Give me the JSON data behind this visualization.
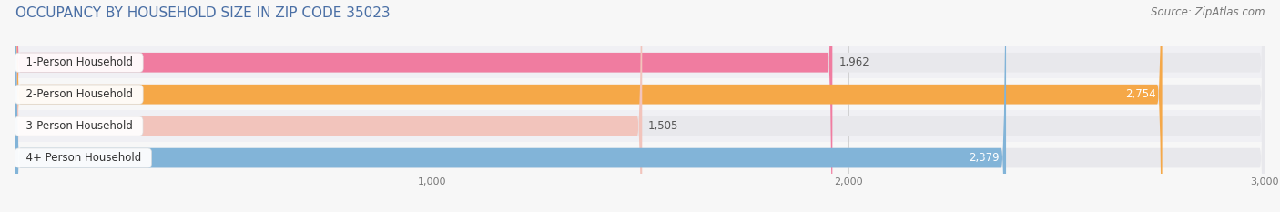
{
  "title": "OCCUPANCY BY HOUSEHOLD SIZE IN ZIP CODE 35023",
  "source": "Source: ZipAtlas.com",
  "categories": [
    "1-Person Household",
    "2-Person Household",
    "3-Person Household",
    "4+ Person Household"
  ],
  "values": [
    1962,
    2754,
    1505,
    2379
  ],
  "bar_colors": [
    "#f07ca0",
    "#f5a848",
    "#f2c4bc",
    "#82b4d8"
  ],
  "bar_bg_color": "#e8e8ec",
  "value_label_inside": [
    false,
    true,
    false,
    true
  ],
  "xlim": [
    0,
    3000
  ],
  "xticks": [
    1000,
    2000,
    3000
  ],
  "title_color": "#4a6fa5",
  "title_fontsize": 11,
  "source_fontsize": 8.5,
  "label_fontsize": 8.5,
  "value_fontsize": 8.5,
  "bar_height": 0.62,
  "background_color": "#f7f7f7",
  "label_bg_color": "#ffffff",
  "row_bg_colors": [
    "#f0f0f4",
    "#f7f7f7",
    "#f0f0f4",
    "#f7f7f7"
  ]
}
